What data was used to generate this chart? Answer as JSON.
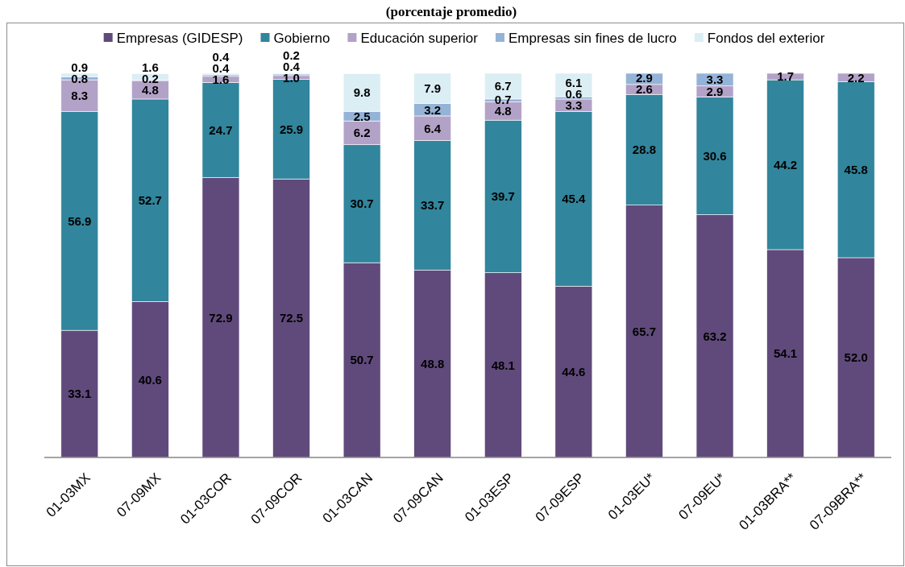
{
  "chart_data": {
    "type": "bar",
    "title": "(porcentaje promedio)",
    "categories": [
      "01-03MX",
      "07-09MX",
      "01-03COR",
      "07-09COR",
      "01-03CAN",
      "07-09CAN",
      "01-03ESP",
      "07-09ESP",
      "01-03EU*",
      "07-09EU*",
      "01-03BRA**",
      "07-09BRA**"
    ],
    "series": [
      {
        "name": "Empresas (GIDESP)",
        "color": "#604a7b",
        "values": [
          33.1,
          40.6,
          72.9,
          72.5,
          50.7,
          48.8,
          48.1,
          44.6,
          65.7,
          63.2,
          54.1,
          52.0
        ],
        "value_labels": [
          "33.1",
          "40.6",
          "72.9",
          "72.5",
          "50.7",
          "48.8",
          "48.1",
          "44.6",
          "65.7",
          "63.2",
          "54.1",
          "52.0"
        ]
      },
      {
        "name": "Gobierno",
        "color": "#31859c",
        "values": [
          56.9,
          52.7,
          24.7,
          25.9,
          30.7,
          33.7,
          39.7,
          45.4,
          28.8,
          30.6,
          44.2,
          45.8
        ],
        "value_labels": [
          "56.9",
          "52.7",
          "24.7",
          "25.9",
          "30.7",
          "33.7",
          "39.7",
          "45.4",
          "28.8",
          "30.6",
          "44.2",
          "45.8"
        ]
      },
      {
        "name": "Educación superior",
        "color": "#b3a2c7",
        "values": [
          8.3,
          4.8,
          1.6,
          1.0,
          6.2,
          6.4,
          4.8,
          3.3,
          2.6,
          2.9,
          1.7,
          2.2
        ],
        "value_labels": [
          "8.3",
          "4.8",
          "1.6",
          "1.0",
          "6.2",
          "6.4",
          "4.8",
          "3.3",
          "2.6",
          "2.9",
          "1.7",
          "2.2"
        ]
      },
      {
        "name": "Empresas sin fines de lucro",
        "color": "#95b3d7",
        "values": [
          0.8,
          0.2,
          0.4,
          0.4,
          2.5,
          3.2,
          0.7,
          0.6,
          2.9,
          3.3,
          null,
          null
        ],
        "value_labels": [
          "0.8",
          "0.2",
          "0.4",
          "0.4",
          "2.5",
          "3.2",
          "0.7",
          "0.6",
          "2.9",
          "3.3",
          null,
          null
        ]
      },
      {
        "name": "Fondos del exterior",
        "color": "#dbeef4",
        "values": [
          0.9,
          1.6,
          0.4,
          0.2,
          9.8,
          7.9,
          6.7,
          6.1,
          null,
          null,
          null,
          null
        ],
        "value_labels": [
          "0.9",
          "1.6",
          "0.4",
          "0.2",
          "9.8",
          "7.9",
          "6.7",
          "6.1",
          null,
          null,
          null,
          null
        ]
      }
    ],
    "stacked": true,
    "legend": "top"
  }
}
